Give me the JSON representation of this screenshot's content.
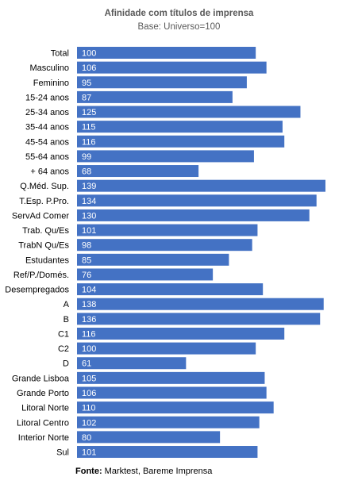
{
  "chart_data": {
    "type": "bar",
    "orientation": "horizontal",
    "title": "Afinidade  com títulos de imprensa",
    "subtitle": "Base: Universo=100",
    "categories": [
      "Total",
      "Masculino",
      "Feminino",
      "15-24 anos",
      "25-34 anos",
      "35-44 anos",
      "45-54 anos",
      "55-64 anos",
      "+ 64 anos",
      "Q.Méd. Sup.",
      "T.Esp. P.Pro.",
      "ServAd Comer",
      "Trab. Qu/Es",
      "TrabN Qu/Es",
      "Estudantes",
      "Ref/P./Domés.",
      "Desempregados",
      "A",
      "B",
      "C1",
      "C2",
      "D",
      "Grande Lisboa",
      "Grande Porto",
      "Litoral Norte",
      "Litoral Centro",
      "Interior Norte",
      "Sul"
    ],
    "values": [
      100,
      106,
      95,
      87,
      125,
      115,
      116,
      99,
      68,
      139,
      134,
      130,
      101,
      98,
      85,
      76,
      104,
      138,
      136,
      116,
      100,
      61,
      105,
      106,
      110,
      102,
      80,
      101
    ],
    "bar_color": "#4472C4",
    "label_color": "#FFFFFF",
    "xlim": [
      0,
      139
    ],
    "grid": false,
    "legend": "none"
  },
  "source": {
    "label": "Fonte:",
    "text": "Marktest, Bareme Imprensa"
  }
}
